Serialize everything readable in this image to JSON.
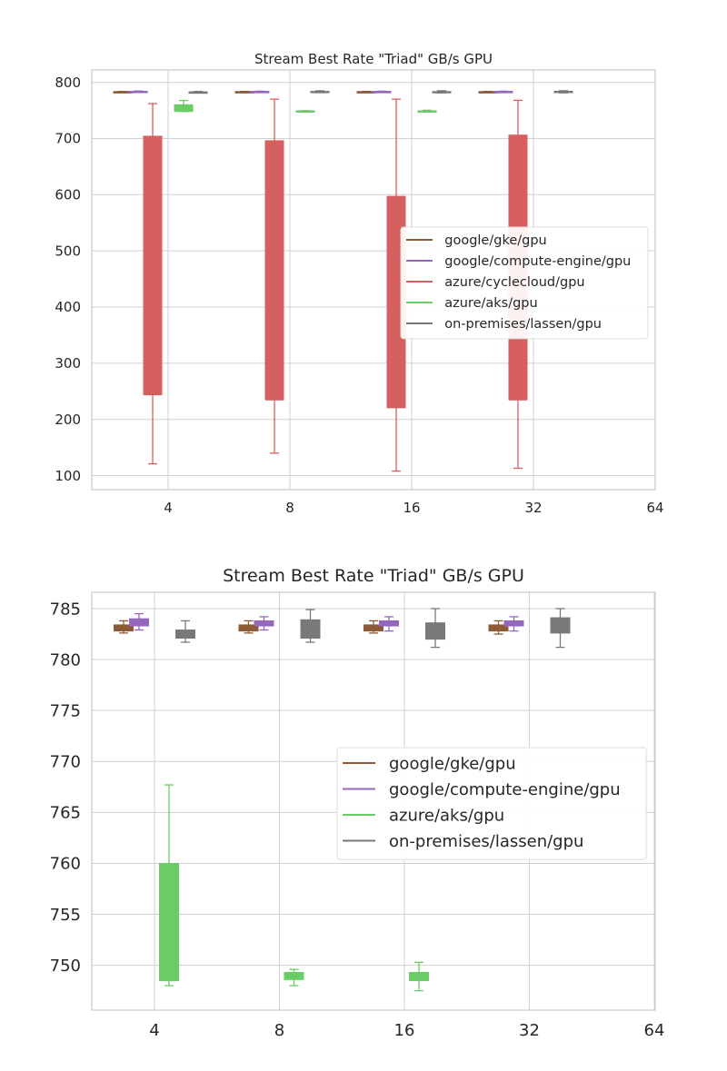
{
  "colors": {
    "google/gke/gpu": "#8c5a37",
    "google/compute-engine/gpu": "#9467bd",
    "azure/cyclecloud/gpu": "#d65f5f",
    "azure/aks/gpu": "#6acc64",
    "on-premises/lassen/gpu": "#797979",
    "grid": "#d0d0d0",
    "text": "#262626"
  },
  "chart_data": [
    {
      "type": "box",
      "title": "Stream Best Rate \"Triad\" GB/s GPU",
      "xlabel": "",
      "ylabel": "",
      "categories": [
        "4",
        "8",
        "16",
        "32",
        "64"
      ],
      "ylim": [
        75,
        822
      ],
      "yticks": [
        100,
        200,
        300,
        400,
        500,
        600,
        700,
        800
      ],
      "grid": true,
      "legend_position": "center-right",
      "legend": [
        "google/gke/gpu",
        "google/compute-engine/gpu",
        "azure/cyclecloud/gpu",
        "azure/aks/gpu",
        "on-premises/lassen/gpu"
      ],
      "series": [
        {
          "name": "google/gke/gpu",
          "boxes": [
            {
              "category": "4",
              "whisker_low": 782.5,
              "q1": 782.8,
              "median": 783.1,
              "q3": 783.4,
              "whisker_high": 783.8
            },
            {
              "category": "8",
              "whisker_low": 782.5,
              "q1": 782.8,
              "median": 783.1,
              "q3": 783.4,
              "whisker_high": 783.8
            },
            {
              "category": "16",
              "whisker_low": 782.5,
              "q1": 782.8,
              "median": 783.1,
              "q3": 783.4,
              "whisker_high": 783.8
            },
            {
              "category": "32",
              "whisker_low": 782.5,
              "q1": 782.8,
              "median": 783.1,
              "q3": 783.4,
              "whisker_high": 783.8
            }
          ]
        },
        {
          "name": "google/compute-engine/gpu",
          "boxes": [
            {
              "category": "4",
              "whisker_low": 783.0,
              "q1": 783.3,
              "median": 783.6,
              "q3": 784.0,
              "whisker_high": 784.5
            },
            {
              "category": "8",
              "whisker_low": 783.0,
              "q1": 783.3,
              "median": 783.5,
              "q3": 783.8,
              "whisker_high": 784.2
            },
            {
              "category": "16",
              "whisker_low": 783.0,
              "q1": 783.3,
              "median": 783.5,
              "q3": 783.8,
              "whisker_high": 784.2
            },
            {
              "category": "32",
              "whisker_low": 783.0,
              "q1": 783.3,
              "median": 783.5,
              "q3": 783.8,
              "whisker_high": 784.2
            }
          ]
        },
        {
          "name": "azure/cyclecloud/gpu",
          "boxes": [
            {
              "category": "4",
              "whisker_low": 121,
              "q1": 244,
              "median": 244,
              "q3": 704,
              "whisker_high": 762
            },
            {
              "category": "8",
              "whisker_low": 140,
              "q1": 235,
              "median": 235,
              "q3": 696,
              "whisker_high": 770
            },
            {
              "category": "16",
              "whisker_low": 108,
              "q1": 221,
              "median": 221,
              "q3": 597,
              "whisker_high": 770
            },
            {
              "category": "32",
              "whisker_low": 113,
              "q1": 235,
              "median": 235,
              "q3": 706,
              "whisker_high": 768
            }
          ]
        },
        {
          "name": "azure/aks/gpu",
          "boxes": [
            {
              "category": "4",
              "whisker_low": 748.0,
              "q1": 748.5,
              "median": 748.5,
              "q3": 760.0,
              "whisker_high": 767.7
            },
            {
              "category": "8",
              "whisker_low": 748.0,
              "q1": 748.6,
              "median": 749.0,
              "q3": 749.3,
              "whisker_high": 749.6
            },
            {
              "category": "16",
              "whisker_low": 747.5,
              "q1": 748.5,
              "median": 749.0,
              "q3": 749.3,
              "whisker_high": 750.3
            }
          ]
        },
        {
          "name": "on-premises/lassen/gpu",
          "boxes": [
            {
              "category": "4",
              "whisker_low": 781.7,
              "q1": 782.1,
              "median": 782.4,
              "q3": 782.9,
              "whisker_high": 783.8
            },
            {
              "category": "8",
              "whisker_low": 781.7,
              "q1": 782.1,
              "median": 782.8,
              "q3": 783.9,
              "whisker_high": 784.9
            },
            {
              "category": "16",
              "whisker_low": 781.2,
              "q1": 782.0,
              "median": 782.8,
              "q3": 783.6,
              "whisker_high": 785.0
            },
            {
              "category": "32",
              "whisker_low": 781.2,
              "q1": 782.6,
              "median": 783.5,
              "q3": 784.1,
              "whisker_high": 785.0
            }
          ]
        }
      ]
    },
    {
      "type": "box",
      "title": "Stream Best Rate \"Triad\" GB/s GPU",
      "xlabel": "",
      "ylabel": "",
      "categories": [
        "4",
        "8",
        "16",
        "32",
        "64"
      ],
      "ylim": [
        745.6,
        786.6
      ],
      "yticks": [
        750,
        755,
        760,
        765,
        770,
        775,
        780,
        785
      ],
      "grid": true,
      "legend_position": "center-right",
      "legend": [
        "google/gke/gpu",
        "google/compute-engine/gpu",
        "azure/aks/gpu",
        "on-premises/lassen/gpu"
      ],
      "series": [
        {
          "name": "google/gke/gpu",
          "boxes": [
            {
              "category": "4",
              "whisker_low": 782.6,
              "q1": 782.8,
              "median": 783.1,
              "q3": 783.4,
              "whisker_high": 783.8
            },
            {
              "category": "8",
              "whisker_low": 782.6,
              "q1": 782.8,
              "median": 783.1,
              "q3": 783.4,
              "whisker_high": 783.8
            },
            {
              "category": "16",
              "whisker_low": 782.6,
              "q1": 782.8,
              "median": 783.1,
              "q3": 783.4,
              "whisker_high": 783.8
            },
            {
              "category": "32",
              "whisker_low": 782.5,
              "q1": 782.8,
              "median": 783.1,
              "q3": 783.4,
              "whisker_high": 783.8
            }
          ]
        },
        {
          "name": "google/compute-engine/gpu",
          "boxes": [
            {
              "category": "4",
              "whisker_low": 782.9,
              "q1": 783.3,
              "median": 783.6,
              "q3": 784.0,
              "whisker_high": 784.5
            },
            {
              "category": "8",
              "whisker_low": 782.9,
              "q1": 783.3,
              "median": 783.5,
              "q3": 783.8,
              "whisker_high": 784.2
            },
            {
              "category": "16",
              "whisker_low": 782.8,
              "q1": 783.3,
              "median": 783.5,
              "q3": 783.8,
              "whisker_high": 784.2
            },
            {
              "category": "32",
              "whisker_low": 782.8,
              "q1": 783.3,
              "median": 783.5,
              "q3": 783.8,
              "whisker_high": 784.2
            }
          ]
        },
        {
          "name": "azure/aks/gpu",
          "boxes": [
            {
              "category": "4",
              "whisker_low": 748.0,
              "q1": 748.5,
              "median": 748.5,
              "q3": 760.0,
              "whisker_high": 767.7
            },
            {
              "category": "8",
              "whisker_low": 748.0,
              "q1": 748.6,
              "median": 749.0,
              "q3": 749.3,
              "whisker_high": 749.6
            },
            {
              "category": "16",
              "whisker_low": 747.5,
              "q1": 748.5,
              "median": 749.0,
              "q3": 749.3,
              "whisker_high": 750.3
            }
          ]
        },
        {
          "name": "on-premises/lassen/gpu",
          "boxes": [
            {
              "category": "4",
              "whisker_low": 781.7,
              "q1": 782.1,
              "median": 782.4,
              "q3": 782.9,
              "whisker_high": 783.8
            },
            {
              "category": "8",
              "whisker_low": 781.7,
              "q1": 782.1,
              "median": 782.8,
              "q3": 783.9,
              "whisker_high": 784.9
            },
            {
              "category": "16",
              "whisker_low": 781.2,
              "q1": 782.0,
              "median": 782.8,
              "q3": 783.6,
              "whisker_high": 785.0
            },
            {
              "category": "32",
              "whisker_low": 781.2,
              "q1": 782.6,
              "median": 783.5,
              "q3": 784.1,
              "whisker_high": 785.0
            }
          ]
        }
      ]
    }
  ]
}
